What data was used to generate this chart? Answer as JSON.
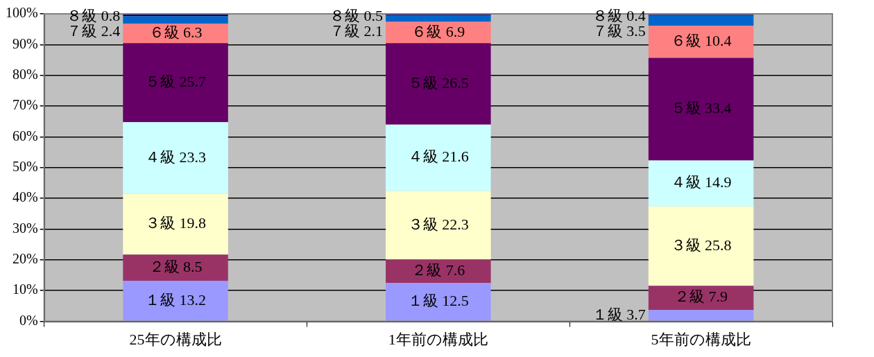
{
  "chart_data": {
    "type": "bar",
    "stacked": true,
    "categories": [
      "25年の構成比",
      "1年前の構成比",
      "5年前の構成比"
    ],
    "series": [
      {
        "name": "１級",
        "color": "#9999ff",
        "values": [
          13.2,
          12.5,
          3.7
        ]
      },
      {
        "name": "２級",
        "color": "#993366",
        "values": [
          8.5,
          7.6,
          7.9
        ]
      },
      {
        "name": "３級",
        "color": "#ffffcc",
        "values": [
          19.8,
          22.3,
          25.8
        ]
      },
      {
        "name": "４級",
        "color": "#ccffff",
        "values": [
          23.3,
          21.6,
          14.9
        ]
      },
      {
        "name": "５級",
        "color": "#660066",
        "values": [
          25.7,
          26.5,
          33.4
        ]
      },
      {
        "name": "６級",
        "color": "#ff8080",
        "values": [
          6.3,
          6.9,
          10.4
        ]
      },
      {
        "name": "７級",
        "color": "#0066cc",
        "values": [
          2.4,
          2.1,
          3.5
        ]
      },
      {
        "name": "８級",
        "color": "#000080",
        "values": [
          0.8,
          0.5,
          0.4
        ]
      }
    ],
    "ylim": [
      0,
      100
    ],
    "yticks": [
      {
        "value": 0,
        "label": "0%"
      },
      {
        "value": 10,
        "label": "10%"
      },
      {
        "value": 20,
        "label": "20%"
      },
      {
        "value": 30,
        "label": "30%"
      },
      {
        "value": 40,
        "label": "40%"
      },
      {
        "value": 50,
        "label": "50%"
      },
      {
        "value": 60,
        "label": "60%"
      },
      {
        "value": 70,
        "label": "70%"
      },
      {
        "value": 80,
        "label": "80%"
      },
      {
        "value": 90,
        "label": "90%"
      },
      {
        "value": 100,
        "label": "100%"
      }
    ],
    "grid": "y",
    "legend": false,
    "data_labels": true
  }
}
